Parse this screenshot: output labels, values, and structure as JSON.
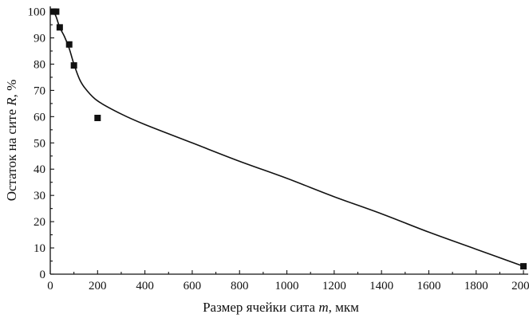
{
  "chart_data": {
    "type": "scatter",
    "xlabel": "Размер ячейки сита",
    "xlabel_var": "m",
    "xlabel_unit": ", мкм",
    "ylabel": "Остаток на сите",
    "ylabel_var": "R",
    "ylabel_unit": ", %",
    "xlim": [
      0,
      2020
    ],
    "ylim": [
      0,
      102
    ],
    "x_ticks": [
      0,
      200,
      400,
      600,
      800,
      1000,
      1200,
      1400,
      1600,
      1800,
      2000
    ],
    "y_ticks": [
      0,
      10,
      20,
      30,
      40,
      50,
      60,
      70,
      80,
      90,
      100
    ],
    "grid": false,
    "legend": "none",
    "series": [
      {
        "kind": "points",
        "marker": "square",
        "x": [
          14,
          25,
          40,
          80,
          100,
          200,
          2000
        ],
        "y": [
          100,
          100,
          94,
          87.5,
          79.5,
          59.5,
          3
        ]
      },
      {
        "kind": "fit-line",
        "x": [
          0,
          14,
          25,
          40,
          60,
          80,
          100,
          125,
          150,
          200,
          300,
          400,
          600,
          800,
          1000,
          1200,
          1400,
          1600,
          1800,
          2000
        ],
        "y": [
          101,
          100,
          98,
          94,
          90.5,
          86,
          80,
          74,
          70.5,
          66,
          61,
          57,
          50,
          43,
          36.5,
          29.5,
          23,
          16,
          9.5,
          3
        ]
      }
    ]
  }
}
